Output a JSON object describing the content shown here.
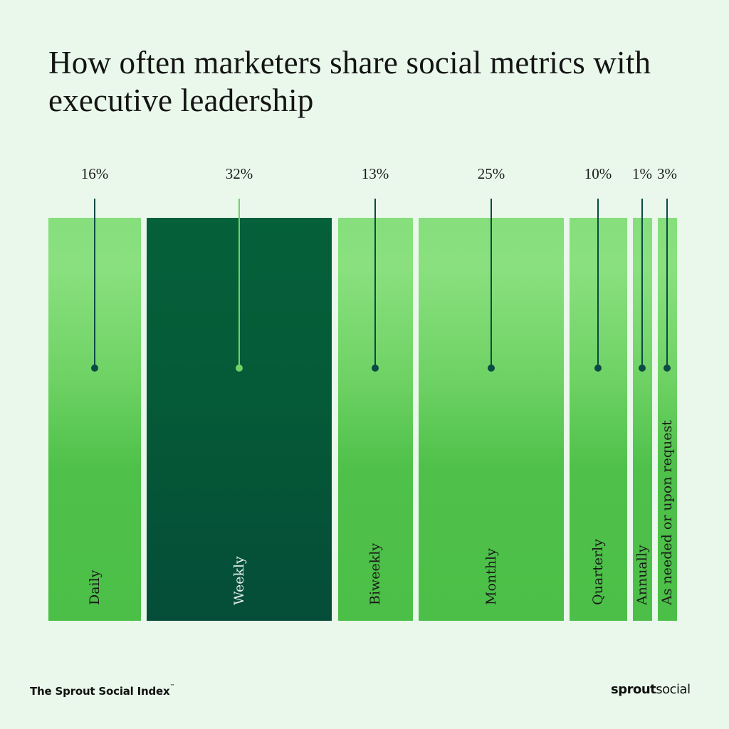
{
  "chart_data": {
    "type": "bar",
    "subtype": "proportional-width",
    "title": "How often marketers share social metrics with executive leadership",
    "categories": [
      "Daily",
      "Weekly",
      "Biweekly",
      "Monthly",
      "Quarterly",
      "Annually",
      "As needed or upon request"
    ],
    "values": [
      16,
      32,
      13,
      25,
      10,
      1,
      3
    ],
    "value_labels": [
      "16%",
      "32%",
      "13%",
      "25%",
      "10%",
      "1%",
      "3%"
    ],
    "unit": "%",
    "highlight": "Weekly",
    "xlabel": "",
    "ylabel": ""
  },
  "colors": {
    "background": "#e9f8ea",
    "bar_light": "#6ed264",
    "bar_dark": "#05573a",
    "stem_dark": "#0b4a45",
    "stem_light": "#6ed264",
    "label_dark_text": "#1a1a1a",
    "label_light_text": "#e6efe9"
  },
  "footer": {
    "source": "The Sprout Social Index",
    "trademark": "™",
    "logo_bold": "sprout",
    "logo_regular": "social"
  }
}
